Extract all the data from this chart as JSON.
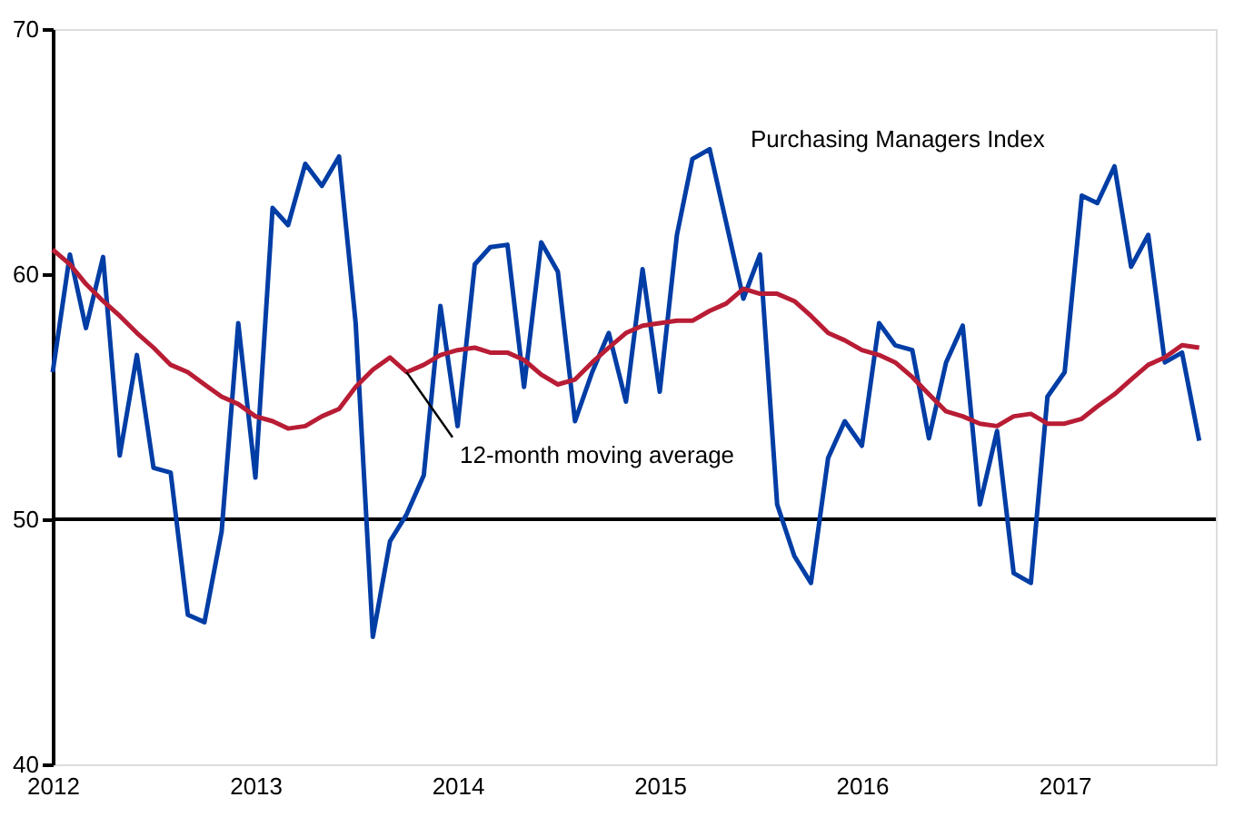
{
  "chart_data": {
    "type": "line",
    "x": [
      "2012-01",
      "2012-02",
      "2012-03",
      "2012-04",
      "2012-05",
      "2012-06",
      "2012-07",
      "2012-08",
      "2012-09",
      "2012-10",
      "2012-11",
      "2012-12",
      "2013-01",
      "2013-02",
      "2013-03",
      "2013-04",
      "2013-05",
      "2013-06",
      "2013-07",
      "2013-08",
      "2013-09",
      "2013-10",
      "2013-11",
      "2013-12",
      "2014-01",
      "2014-02",
      "2014-03",
      "2014-04",
      "2014-05",
      "2014-06",
      "2014-07",
      "2014-08",
      "2014-09",
      "2014-10",
      "2014-11",
      "2014-12",
      "2015-01",
      "2015-02",
      "2015-03",
      "2015-04",
      "2015-05",
      "2015-06",
      "2015-07",
      "2015-08",
      "2015-09",
      "2015-10",
      "2015-11",
      "2015-12",
      "2016-01",
      "2016-02",
      "2016-03",
      "2016-04",
      "2016-05",
      "2016-06",
      "2016-07",
      "2016-08",
      "2016-09",
      "2016-10",
      "2016-11",
      "2016-12",
      "2017-01",
      "2017-02",
      "2017-03",
      "2017-04",
      "2017-05",
      "2017-06",
      "2017-07",
      "2017-08",
      "2017-09"
    ],
    "series": [
      {
        "name": "Purchasing Managers Index",
        "color": "#003da5",
        "values": [
          56.0,
          60.8,
          57.8,
          60.7,
          52.6,
          56.7,
          52.1,
          51.9,
          46.1,
          45.8,
          49.5,
          58.0,
          51.7,
          62.7,
          62.0,
          64.5,
          63.6,
          64.8,
          58.0,
          45.2,
          49.1,
          50.2,
          51.8,
          58.7,
          53.8,
          60.4,
          61.1,
          61.2,
          55.4,
          61.3,
          60.1,
          54.0,
          56.0,
          57.6,
          54.8,
          60.2,
          55.2,
          61.6,
          64.7,
          65.1,
          62.1,
          59.0,
          60.8,
          50.6,
          48.5,
          47.4,
          52.5,
          54.0,
          53.0,
          58.0,
          57.1,
          56.9,
          53.3,
          56.4,
          57.9,
          50.6,
          53.6,
          47.8,
          47.4,
          55.0,
          56.0,
          63.2,
          62.9,
          64.4,
          60.3,
          61.6,
          56.4,
          56.8,
          53.2
        ]
      },
      {
        "name": "12-month moving average",
        "color": "#b81d35",
        "values": [
          61.0,
          60.4,
          59.6,
          58.9,
          58.3,
          57.6,
          57.0,
          56.3,
          56.0,
          55.5,
          55.0,
          54.7,
          54.2,
          54.0,
          53.7,
          53.8,
          54.2,
          54.5,
          55.4,
          56.1,
          56.6,
          56.0,
          56.3,
          56.7,
          56.9,
          57.0,
          56.8,
          56.8,
          56.5,
          55.9,
          55.5,
          55.7,
          56.4,
          57.0,
          57.6,
          57.9,
          58.0,
          58.1,
          58.1,
          58.5,
          58.8,
          59.4,
          59.2,
          59.2,
          58.9,
          58.3,
          57.6,
          57.3,
          56.9,
          56.7,
          56.4,
          55.8,
          55.1,
          54.4,
          54.2,
          53.9,
          53.8,
          54.2,
          54.3,
          53.9,
          53.9,
          54.1,
          54.6,
          55.1,
          55.7,
          56.3,
          56.6,
          57.1,
          57.0
        ]
      }
    ],
    "xlim": [
      "2012-01",
      "2017-10"
    ],
    "xticks": [
      {
        "value": "2012-01",
        "label": "2012"
      },
      {
        "value": "2013-01",
        "label": "2013"
      },
      {
        "value": "2014-01",
        "label": "2014"
      },
      {
        "value": "2015-01",
        "label": "2015"
      },
      {
        "value": "2016-01",
        "label": "2016"
      },
      {
        "value": "2017-01",
        "label": "2017"
      }
    ],
    "ylim": [
      40,
      70
    ],
    "yticks": [
      40,
      50,
      60,
      70
    ],
    "ref_lines": [
      {
        "axis": "y",
        "value": 50,
        "label": null,
        "color": "#000000"
      }
    ],
    "grid": false,
    "marker": "none",
    "line_style": "solid"
  }
}
